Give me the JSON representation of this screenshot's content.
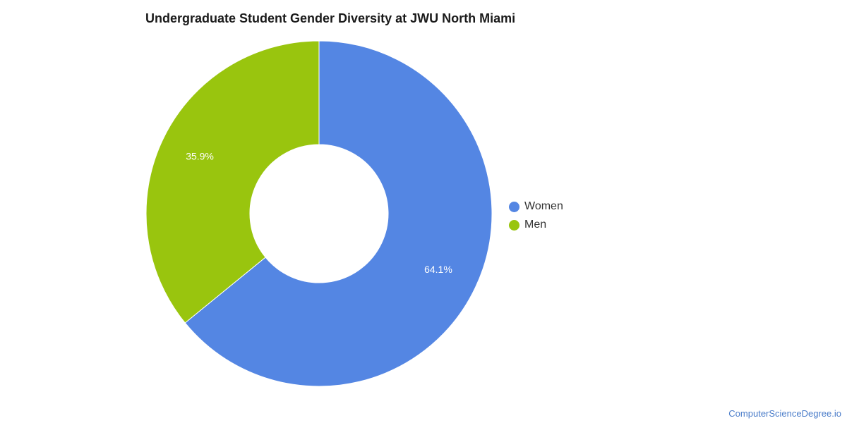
{
  "chart_data": {
    "type": "pie",
    "title": "Undergraduate Student Gender Diversity at JWU North Miami",
    "donut": true,
    "legend_placement": "right",
    "series": [
      {
        "name": "Women",
        "value": 64.1,
        "label": "64.1%",
        "color": "#5486e3"
      },
      {
        "name": "Men",
        "value": 35.9,
        "label": "35.9%",
        "color": "#99c50e"
      }
    ]
  },
  "footer": {
    "watermark": "ComputerScienceDegree.io"
  }
}
